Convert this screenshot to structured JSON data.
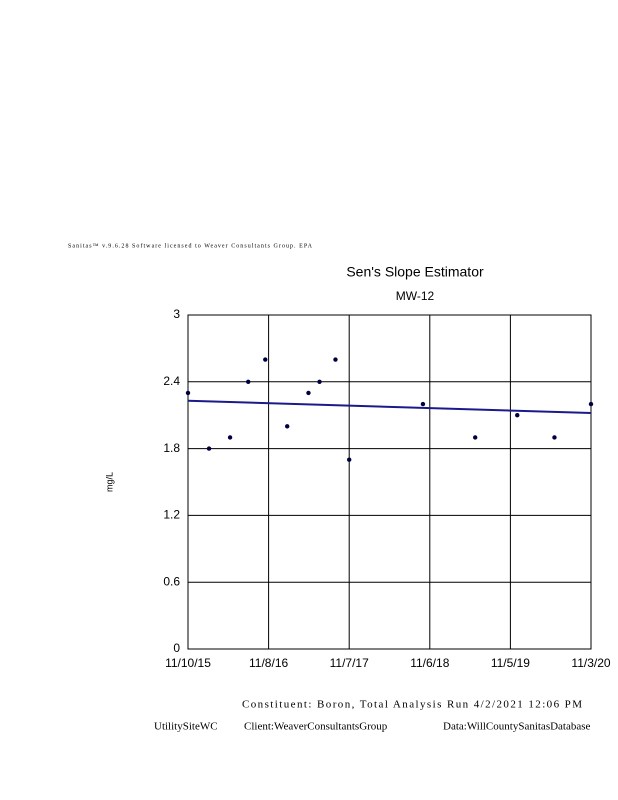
{
  "chart_data": {
    "type": "scatter",
    "header_note": "Sanitas™ v.9.6.28 Software licensed to Weaver Consultants Group. EPA",
    "title": "Sen's Slope Estimator",
    "subtitle": "MW-12",
    "y_label": "mg/L",
    "xlim": [
      "2015-11-10",
      "2020-11-03"
    ],
    "xticks": [
      {
        "value": "2015-11-10",
        "label": "11/10/15"
      },
      {
        "value": "2016-11-08",
        "label": "11/8/16"
      },
      {
        "value": "2017-11-07",
        "label": "11/7/17"
      },
      {
        "value": "2018-11-06",
        "label": "11/6/18"
      },
      {
        "value": "2019-11-05",
        "label": "11/5/19"
      },
      {
        "value": "2020-11-03",
        "label": "11/3/20"
      }
    ],
    "ylim": [
      0,
      3
    ],
    "yticks": [
      0,
      0.6,
      1.2,
      1.8,
      2.4,
      3
    ],
    "grid": true,
    "series": [
      {
        "kind": "points",
        "color": "#000040",
        "x": [
          "2015-11-10",
          "2016-02-13",
          "2016-05-18",
          "2016-08-08",
          "2016-10-24",
          "2017-01-31",
          "2017-05-07",
          "2017-06-26",
          "2017-09-06",
          "2017-11-07",
          "2018-10-06",
          "2019-05-30",
          "2019-12-06",
          "2020-05-22",
          "2020-11-03"
        ],
        "values": [
          2.3,
          1.8,
          1.9,
          2.4,
          2.6,
          2.0,
          2.3,
          2.4,
          2.6,
          1.7,
          2.2,
          1.9,
          2.1,
          1.9,
          2.2
        ]
      },
      {
        "kind": "line",
        "color": "#1a1a8c",
        "x": [
          "2015-11-10",
          "2020-11-03"
        ],
        "values": [
          2.23,
          2.12
        ]
      }
    ],
    "footer": [
      "Constituent: Boron, Total Analysis Run 4/2/2021 12:06 PM",
      "UtilitySiteWC",
      "Client:WeaverConsultantsGroup",
      "Data:WillCountySanitasDatabase"
    ]
  }
}
